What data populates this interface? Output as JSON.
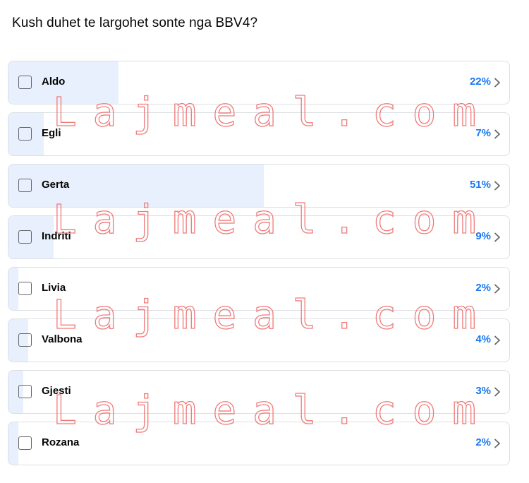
{
  "poll": {
    "question": "Kush duhet te largohet sonte nga BBV4?",
    "accent_color": "#1877f2",
    "fill_color": "#e7f0fc",
    "options": [
      {
        "label": "Aldo",
        "percent_text": "22%",
        "percent": 22
      },
      {
        "label": "Egli",
        "percent_text": "7%",
        "percent": 7
      },
      {
        "label": "Gerta",
        "percent_text": "51%",
        "percent": 51
      },
      {
        "label": "Indriti",
        "percent_text": "9%",
        "percent": 9
      },
      {
        "label": "Livia",
        "percent_text": "2%",
        "percent": 2
      },
      {
        "label": "Valbona",
        "percent_text": "4%",
        "percent": 4
      },
      {
        "label": "Gjesti",
        "percent_text": "3%",
        "percent": 3
      },
      {
        "label": "Rozana",
        "percent_text": "2%",
        "percent": 2
      }
    ]
  },
  "watermark": {
    "text": "Lajmeal.com",
    "color": "#f07a7a"
  }
}
